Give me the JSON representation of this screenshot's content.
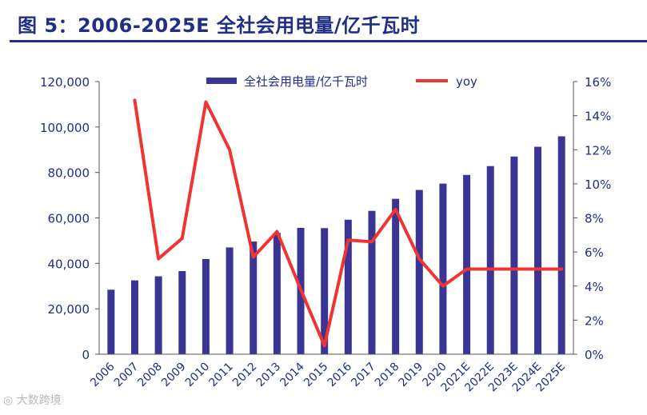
{
  "figure": {
    "title": "图 5：2006-2025E 全社会用电量/亿千瓦时"
  },
  "watermark": {
    "text": "大数跨境"
  },
  "colors": {
    "title": "#1f2f86",
    "bar": "#3a3595",
    "line": "#f03434",
    "axis": "#555555",
    "tick_text": "#1f2f86"
  },
  "chart_data": {
    "type": "bar",
    "categories": [
      "2006",
      "2007",
      "2008",
      "2009",
      "2010",
      "2011",
      "2012",
      "2013",
      "2014",
      "2015",
      "2016",
      "2017",
      "2018",
      "2019",
      "2020",
      "2021E",
      "2022E",
      "2023E",
      "2024E",
      "2025E"
    ],
    "series": [
      {
        "name": "全社会用电量/亿千瓦时",
        "type": "bar",
        "axis": "left",
        "values": [
          28400,
          32500,
          34300,
          36600,
          41900,
          47000,
          49600,
          53400,
          55600,
          55500,
          59200,
          63100,
          68400,
          72300,
          75100,
          78900,
          82800,
          87000,
          91300,
          95900
        ]
      },
      {
        "name": "yoy",
        "type": "line",
        "axis": "right",
        "values": [
          null,
          14.9,
          5.6,
          6.8,
          14.8,
          12.0,
          5.7,
          7.2,
          3.8,
          0.5,
          6.7,
          6.6,
          8.5,
          5.6,
          4.0,
          5.0,
          5.0,
          5.0,
          5.0,
          5.0
        ]
      }
    ],
    "y_left": {
      "min": 0,
      "max": 120000,
      "ticks": [
        0,
        20000,
        40000,
        60000,
        80000,
        100000,
        120000
      ],
      "tick_labels": [
        "0",
        "20,000",
        "40,000",
        "60,000",
        "80,000",
        "100,000",
        "120,000"
      ]
    },
    "y_right": {
      "min": 0,
      "max": 16,
      "ticks": [
        0,
        2,
        4,
        6,
        8,
        10,
        12,
        14,
        16
      ],
      "tick_labels": [
        "0%",
        "2%",
        "4%",
        "6%",
        "8%",
        "10%",
        "12%",
        "14%",
        "16%"
      ]
    },
    "legend": {
      "position": "top",
      "items": [
        "全社会用电量/亿千瓦时",
        "yoy"
      ]
    },
    "xlabel": "",
    "ylabel": "",
    "grid": false
  }
}
